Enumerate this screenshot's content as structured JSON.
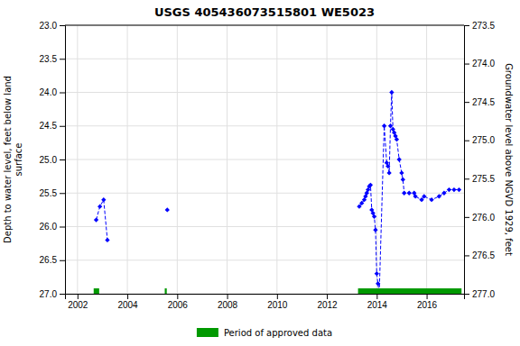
{
  "chart_data": {
    "type": "line",
    "title": "USGS 405436073515801 WE5023",
    "ylabel": "Depth to water level, feet below land\nsurface",
    "y2label": "Groundwater level above NGVD 1929, feet",
    "xlim": [
      2001.5,
      2017.5
    ],
    "ylim": [
      27.0,
      23.0
    ],
    "y2lim": [
      277.0,
      273.5
    ],
    "xticks": [
      2002,
      2004,
      2006,
      2008,
      2010,
      2012,
      2014,
      2016
    ],
    "yticks": [
      {
        "value": 23.0,
        "label": "23.0"
      },
      23.5,
      {
        "value": 24.0,
        "label": "24.0"
      },
      24.5,
      {
        "value": 25.0,
        "label": "25.0"
      },
      25.5,
      {
        "value": 26.0,
        "label": "26.0"
      },
      26.5,
      {
        "value": 27.0,
        "label": "27.0"
      }
    ],
    "y2ticks": [
      {
        "value": 277.0,
        "label": "277.0"
      },
      276.5,
      {
        "value": 276.0,
        "label": "276.0"
      },
      275.5,
      {
        "value": 275.0,
        "label": "275.0"
      },
      274.5,
      {
        "value": 274.0,
        "label": "274.0"
      },
      273.5
    ],
    "grid": true,
    "legend": "bottom",
    "series": [
      {
        "type": "line",
        "color": "#0000ff",
        "marker": "diamond",
        "line_style": "dashed",
        "x": [
          2002.75,
          2002.9,
          2003.05,
          2003.2,
          null,
          2005.6,
          null,
          2013.3,
          2013.4,
          2013.5,
          2013.55,
          2013.6,
          2013.65,
          2013.7,
          2013.75,
          2013.8,
          2013.85,
          2013.9,
          2013.95,
          2014.0,
          2014.05,
          2014.1,
          2014.3,
          2014.4,
          2014.45,
          2014.5,
          2014.55,
          2014.6,
          2014.65,
          2014.7,
          2014.75,
          2014.8,
          2014.9,
          2015.0,
          2015.05,
          2015.1,
          2015.3,
          2015.5,
          2015.55,
          2015.8,
          2015.9,
          2016.2,
          2016.5,
          2016.7,
          2016.9,
          2017.1,
          2017.3
        ],
        "values": [
          25.9,
          25.7,
          25.6,
          26.2,
          null,
          25.75,
          null,
          25.7,
          25.65,
          25.6,
          25.55,
          25.5,
          25.45,
          25.4,
          25.38,
          25.75,
          25.8,
          25.85,
          26.05,
          26.7,
          26.85,
          27.0,
          24.5,
          25.05,
          25.1,
          25.2,
          24.5,
          24.0,
          24.55,
          24.6,
          24.65,
          24.7,
          25.0,
          25.2,
          25.3,
          25.5,
          25.5,
          25.5,
          25.55,
          25.6,
          25.55,
          25.6,
          25.55,
          25.5,
          25.45,
          25.45,
          25.45
        ]
      },
      {
        "type": "span",
        "name": "Period of approved data",
        "color": "#009900",
        "start": [
          2002.65,
          2005.5,
          2013.25
        ],
        "end": [
          2002.87,
          2005.58,
          2017.4
        ],
        "y_span": [
          26.92,
          27.0
        ]
      }
    ]
  }
}
